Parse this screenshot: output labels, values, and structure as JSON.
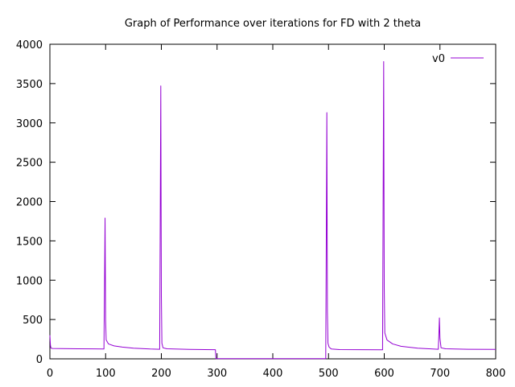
{
  "chart_data": {
    "type": "line",
    "title": "Graph of Performance over iterations for FD with 2 theta",
    "xlabel": "",
    "ylabel": "",
    "xlim": [
      0,
      800
    ],
    "ylim": [
      0,
      4000
    ],
    "xticks": [
      0,
      100,
      200,
      300,
      400,
      500,
      600,
      700,
      800
    ],
    "yticks": [
      0,
      500,
      1000,
      1500,
      2000,
      2500,
      3000,
      3500,
      4000
    ],
    "grid": false,
    "legend": "top-right",
    "series": [
      {
        "name": "v0",
        "color": "#9400d3",
        "points": [
          [
            0,
            300
          ],
          [
            1,
            170
          ],
          [
            2,
            135
          ],
          [
            5,
            132
          ],
          [
            20,
            131
          ],
          [
            50,
            128
          ],
          [
            80,
            126
          ],
          [
            97,
            125
          ],
          [
            98,
            900
          ],
          [
            99,
            1790
          ],
          [
            100,
            500
          ],
          [
            101,
            240
          ],
          [
            105,
            190
          ],
          [
            115,
            165
          ],
          [
            130,
            150
          ],
          [
            150,
            135
          ],
          [
            180,
            125
          ],
          [
            197,
            122
          ],
          [
            198,
            1800
          ],
          [
            199,
            3470
          ],
          [
            200,
            800
          ],
          [
            201,
            200
          ],
          [
            203,
            140
          ],
          [
            210,
            128
          ],
          [
            250,
            120
          ],
          [
            297,
            116
          ],
          [
            298,
            2
          ],
          [
            400,
            2
          ],
          [
            495,
            2
          ],
          [
            496,
            1500
          ],
          [
            497,
            3130
          ],
          [
            498,
            600
          ],
          [
            499,
            200
          ],
          [
            501,
            150
          ],
          [
            505,
            125
          ],
          [
            520,
            118
          ],
          [
            597,
            115
          ],
          [
            598,
            2000
          ],
          [
            599,
            3780
          ],
          [
            600,
            900
          ],
          [
            601,
            330
          ],
          [
            605,
            240
          ],
          [
            615,
            190
          ],
          [
            630,
            160
          ],
          [
            660,
            135
          ],
          [
            697,
            122
          ],
          [
            698,
            300
          ],
          [
            699,
            520
          ],
          [
            700,
            260
          ],
          [
            702,
            140
          ],
          [
            710,
            128
          ],
          [
            750,
            122
          ],
          [
            800,
            120
          ]
        ]
      }
    ]
  }
}
